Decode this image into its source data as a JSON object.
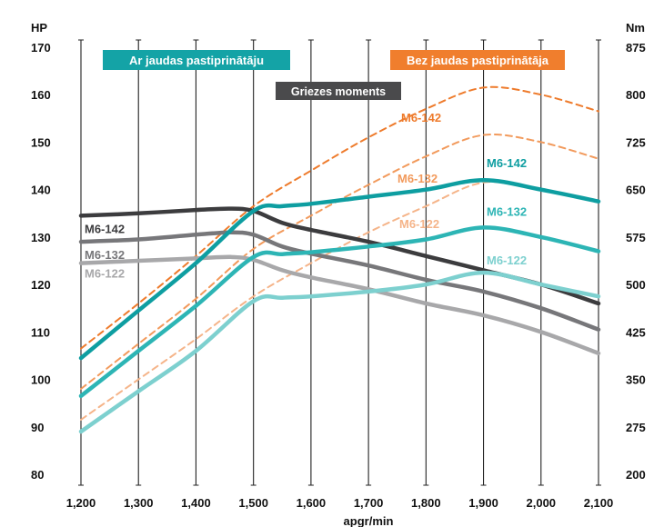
{
  "chart_data": {
    "type": "line",
    "left_axis_unit": "HP",
    "right_axis_unit": "Nm",
    "xlabel": "apgr/min",
    "x": [
      1200,
      1300,
      1400,
      1500,
      1600,
      1700,
      1800,
      1900,
      2000,
      2100
    ],
    "x_tick_labels": [
      "1,200",
      "1,300",
      "1,400",
      "1,500",
      "1,600",
      "1,700",
      "1,800",
      "1,900",
      "2,000",
      "2,100"
    ],
    "x_range": [
      1200,
      2100
    ],
    "left_ylim": [
      80,
      170
    ],
    "left_ticks": [
      "80",
      "90",
      "100",
      "110",
      "120",
      "130",
      "140",
      "150",
      "160",
      "170"
    ],
    "right_ylim": [
      200,
      875
    ],
    "right_ticks": [
      "200",
      "275",
      "350",
      "425",
      "500",
      "575",
      "650",
      "725",
      "800",
      "875"
    ],
    "grid": "vertical",
    "legend": {
      "with_booster": "Ar jaudas pastiprinātāju",
      "without_booster": "Bez jaudas pastiprinātāja",
      "torque": "Griezes moments"
    },
    "colors": {
      "with_booster": "#16a3a6",
      "without_booster": "#f07e2d",
      "torque": "#4a4a4c",
      "gridline": "#222222"
    },
    "power_with_booster": [
      {
        "name": "M6-142",
        "x": [
          1200,
          1300,
          1400,
          1500,
          1550,
          1600,
          1700,
          1800,
          1900,
          2000,
          2100
        ],
        "y": [
          104.5,
          114.5,
          124.5,
          135.5,
          136.5,
          137,
          138.5,
          140,
          142,
          140,
          137.5
        ],
        "color": "#0e9ea1"
      },
      {
        "name": "M6-132",
        "x": [
          1200,
          1300,
          1400,
          1500,
          1550,
          1600,
          1700,
          1800,
          1900,
          2000,
          2100
        ],
        "y": [
          96.5,
          106,
          115.5,
          125.8,
          126.4,
          126.8,
          128,
          129.5,
          132,
          130,
          127
        ],
        "color": "#2db5b5"
      },
      {
        "name": "M6-122",
        "x": [
          1200,
          1300,
          1400,
          1500,
          1550,
          1600,
          1700,
          1800,
          1900,
          2000,
          2100
        ],
        "y": [
          89,
          97.5,
          106,
          116.5,
          117.2,
          117.5,
          118.5,
          120,
          122.5,
          120,
          117.5
        ],
        "color": "#7dd0cf"
      }
    ],
    "power_without_booster": [
      {
        "name": "M6-142",
        "x": [
          1200,
          1300,
          1400,
          1500,
          1600,
          1700,
          1800,
          1900,
          2000,
          2100
        ],
        "y": [
          106.5,
          116,
          126,
          136.5,
          144,
          151,
          157,
          161.5,
          160,
          156.5
        ],
        "color": "#ee7b2c"
      },
      {
        "name": "M6-132",
        "x": [
          1200,
          1300,
          1400,
          1500,
          1600,
          1700,
          1800,
          1900,
          2000,
          2100
        ],
        "y": [
          98,
          107.5,
          117,
          127.5,
          134.5,
          141,
          147,
          151.5,
          150,
          146.5
        ],
        "color": "#f29a5c"
      },
      {
        "name": "M6-122",
        "x": [
          1200,
          1300,
          1400,
          1500,
          1600,
          1700,
          1800,
          1900,
          2000,
          2100
        ],
        "y": [
          91.5,
          100,
          108.5,
          117.5,
          124.5,
          131,
          136.5,
          141.5,
          140,
          137.5
        ],
        "color": "#f5b489"
      }
    ],
    "torque": [
      {
        "name": "M6-142",
        "x": [
          1200,
          1300,
          1400,
          1460,
          1500,
          1550,
          1600,
          1700,
          1800,
          1900,
          2000,
          2100
        ],
        "y": [
          134.5,
          135,
          135.7,
          136,
          135.5,
          133,
          131.5,
          129,
          126,
          123,
          120,
          116
        ],
        "color": "#3c3c3e"
      },
      {
        "name": "M6-132",
        "x": [
          1200,
          1300,
          1400,
          1460,
          1500,
          1550,
          1600,
          1700,
          1800,
          1900,
          2000,
          2100
        ],
        "y": [
          129,
          129.5,
          130.5,
          131,
          130.5,
          128,
          126.5,
          124,
          121,
          118.5,
          115,
          110.5
        ],
        "color": "#77777a"
      },
      {
        "name": "M6-122",
        "x": [
          1200,
          1300,
          1400,
          1460,
          1500,
          1550,
          1600,
          1700,
          1800,
          1900,
          2000,
          2100
        ],
        "y": [
          124.5,
          125,
          125.5,
          125.8,
          125.2,
          123,
          121.5,
          119,
          116,
          113.5,
          110,
          105.5
        ],
        "color": "#a8a8aa"
      }
    ]
  }
}
